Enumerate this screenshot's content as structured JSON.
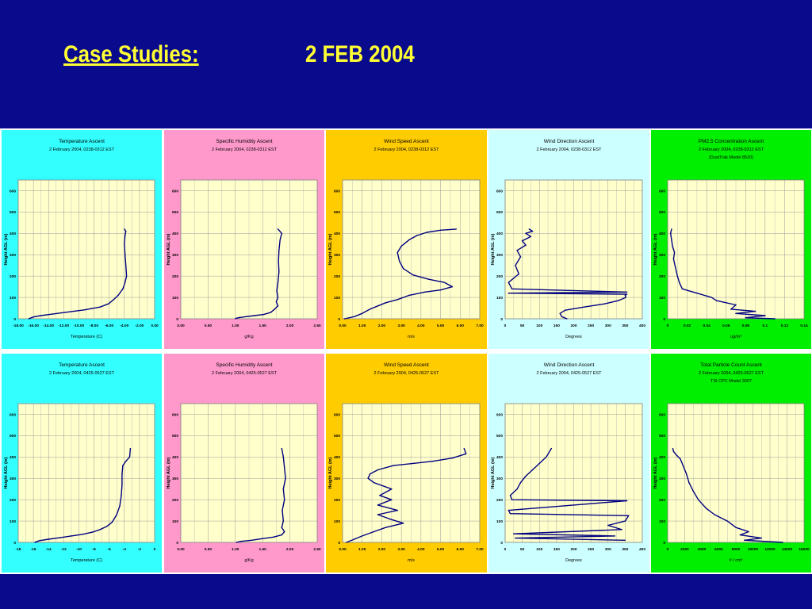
{
  "slide": {
    "title_left": "Case Studies:",
    "title_right": "2 FEB 2004",
    "background": "#0a0a8c",
    "title_color": "#ffff33"
  },
  "chart_data": [
    {
      "type": "line",
      "title": "Temperature Ascent",
      "subtitle": "2 February 2004, 0238-0312 EST",
      "xlabel": "Temperature (C)",
      "ylabel": "Height AGL (m)",
      "xlim": [
        -18,
        0
      ],
      "ylim": [
        0,
        650
      ],
      "xticks": [
        "-18.00",
        "-16.00",
        "-14.00",
        "-12.00",
        "-10.00",
        "-8.00",
        "-6.00",
        "-4.00",
        "-2.00",
        "0.00"
      ],
      "yticks": [
        "0",
        "100",
        "200",
        "300",
        "400",
        "500",
        "600"
      ],
      "grid": true,
      "panel_color": "#33ffff",
      "series": [
        {
          "x": [
            -16.6,
            -16.4,
            -16.2,
            -15.8,
            -15.0,
            -13.5,
            -11.8,
            -10.5,
            -9.2,
            -8.3,
            -7.2,
            -6.1,
            -5.4,
            -4.8,
            -4.2,
            -3.9,
            -3.7,
            -3.8,
            -3.9,
            -4.0,
            -3.9,
            -3.8,
            -4.0
          ],
          "y": [
            0,
            3,
            6,
            10,
            15,
            22,
            30,
            36,
            42,
            48,
            55,
            70,
            90,
            110,
            140,
            170,
            200,
            250,
            300,
            350,
            390,
            410,
            420
          ]
        }
      ]
    },
    {
      "type": "line",
      "title": "Specific Humidity Ascent",
      "subtitle": "2 February 2004, 0238-0312 EST",
      "xlabel": "g/Kg",
      "ylabel": "Height AGL (m)",
      "xlim": [
        0,
        2.5
      ],
      "ylim": [
        0,
        650
      ],
      "xticks": [
        "0.00",
        "0.50",
        "1.00",
        "1.50",
        "2.00",
        "2.50"
      ],
      "yticks": [
        "0",
        "100",
        "200",
        "300",
        "400",
        "500",
        "600"
      ],
      "grid": true,
      "panel_color": "#ff99cc",
      "series": [
        {
          "x": [
            1.0,
            1.02,
            1.08,
            1.2,
            1.35,
            1.52,
            1.65,
            1.72,
            1.78,
            1.75,
            1.78,
            1.76,
            1.78,
            1.8,
            1.79,
            1.8,
            1.82,
            1.85,
            1.78
          ],
          "y": [
            0,
            3,
            6,
            10,
            15,
            20,
            30,
            45,
            60,
            80,
            100,
            130,
            170,
            220,
            270,
            320,
            370,
            400,
            420
          ]
        }
      ]
    },
    {
      "type": "line",
      "title": "Wind Speed Ascent",
      "subtitle": "2 February 2004, 0238-0312 EST",
      "xlabel": "m/s",
      "ylabel": "Height AGL (m)",
      "xlim": [
        0,
        7
      ],
      "ylim": [
        0,
        650
      ],
      "xticks": [
        "0.00",
        "1.00",
        "2.00",
        "3.00",
        "4.00",
        "5.00",
        "6.00",
        "7.00"
      ],
      "yticks": [
        "0",
        "100",
        "200",
        "300",
        "400",
        "500",
        "600"
      ],
      "grid": true,
      "panel_color": "#ffcc00",
      "series": [
        {
          "x": [
            0.1,
            0.6,
            1.0,
            1.4,
            1.8,
            2.2,
            2.8,
            3.4,
            4.2,
            5.0,
            5.6,
            5.2,
            4.4,
            3.6,
            3.1,
            2.9,
            2.8,
            3.0,
            3.4,
            3.8,
            4.3,
            5.0,
            5.8
          ],
          "y": [
            0,
            10,
            25,
            45,
            60,
            75,
            90,
            110,
            125,
            135,
            150,
            170,
            185,
            205,
            235,
            270,
            310,
            340,
            370,
            390,
            405,
            415,
            420
          ]
        }
      ]
    },
    {
      "type": "line",
      "title": "Wind Direction Ascent",
      "subtitle": "2 February 2004, 0238-0312 EST",
      "xlabel": "Degrees",
      "ylabel": "Height AGL (m)",
      "xlim": [
        0,
        400
      ],
      "ylim": [
        0,
        650
      ],
      "xticks": [
        "0",
        "50",
        "100",
        "150",
        "200",
        "250",
        "300",
        "350",
        "400"
      ],
      "yticks": [
        "0",
        "100",
        "200",
        "300",
        "400",
        "500",
        "600"
      ],
      "grid": true,
      "panel_color": "#ccffff",
      "series": [
        {
          "x": [
            180,
            165,
            160,
            175,
            230,
            290,
            330,
            352,
            350,
            355,
            10,
            355,
            20,
            10,
            40,
            30,
            45,
            35,
            60,
            50,
            75,
            60,
            80,
            70
          ],
          "y": [
            0,
            10,
            25,
            40,
            55,
            70,
            85,
            100,
            110,
            115,
            120,
            125,
            140,
            170,
            210,
            250,
            290,
            320,
            345,
            365,
            385,
            400,
            410,
            420
          ]
        }
      ]
    },
    {
      "type": "line",
      "title": "PM2.5 Concentration Ascent",
      "subtitle": "2 February 2004, 0238-0312 EST",
      "subtitle2": "(DustTrak Model 8520)",
      "xlabel": "ug/m³",
      "ylabel": "Height AGL (m)",
      "xlim": [
        0,
        0.14
      ],
      "ylim": [
        0,
        650
      ],
      "xticks": [
        "0",
        "0.02",
        "0.04",
        "0.06",
        "0.08",
        "0.1",
        "0.12",
        "0.14"
      ],
      "yticks": [
        "0",
        "100",
        "200",
        "300",
        "400",
        "500",
        "600"
      ],
      "grid": true,
      "panel_color": "#00ee00",
      "series": [
        {
          "x": [
            0.11,
            0.08,
            0.1,
            0.07,
            0.09,
            0.065,
            0.07,
            0.05,
            0.045,
            0.03,
            0.015,
            0.012,
            0.01,
            0.008,
            0.006,
            0.007,
            0.005,
            0.004,
            0.003,
            0.004
          ],
          "y": [
            0,
            5,
            15,
            25,
            35,
            45,
            65,
            85,
            100,
            120,
            140,
            170,
            200,
            240,
            280,
            310,
            340,
            370,
            400,
            420
          ]
        }
      ]
    },
    {
      "type": "line",
      "title": "Temperature Ascent",
      "subtitle": "2 February 2004, 0425-0527 EST",
      "xlabel": "Temperature (C)",
      "ylabel": "Height AGL (m)",
      "xlim": [
        -18,
        0
      ],
      "ylim": [
        0,
        650
      ],
      "xticks": [
        "-18",
        "-16",
        "-14",
        "-12",
        "-10",
        "-8",
        "-6",
        "-4",
        "-2",
        "0"
      ],
      "yticks": [
        "0",
        "100",
        "200",
        "300",
        "400",
        "500",
        "600"
      ],
      "grid": true,
      "panel_color": "#33ffff",
      "series": [
        {
          "x": [
            -15.8,
            -15.6,
            -15.2,
            -14.0,
            -12.5,
            -11.0,
            -9.5,
            -8.2,
            -7.2,
            -6.3,
            -5.6,
            -5.0,
            -4.6,
            -4.4,
            -4.3,
            -4.3,
            -4.2,
            -3.8,
            -3.3,
            -3.2
          ],
          "y": [
            0,
            3,
            8,
            15,
            22,
            30,
            38,
            48,
            60,
            75,
            95,
            130,
            170,
            220,
            270,
            320,
            360,
            380,
            400,
            440
          ]
        }
      ]
    },
    {
      "type": "line",
      "title": "Specific Humidity Ascent",
      "subtitle": "2 February 2004, 0425-0527 EST",
      "xlabel": "g/Kg",
      "ylabel": "Height AGL (m)",
      "xlim": [
        0,
        2.5
      ],
      "ylim": [
        0,
        650
      ],
      "xticks": [
        "0.00",
        "0.50",
        "1.00",
        "1.50",
        "2.00",
        "2.50"
      ],
      "yticks": [
        "0",
        "100",
        "200",
        "300",
        "400",
        "500",
        "600"
      ],
      "grid": true,
      "panel_color": "#ff99cc",
      "series": [
        {
          "x": [
            1.02,
            1.1,
            1.3,
            1.5,
            1.7,
            1.85,
            1.9,
            1.85,
            1.88,
            1.86,
            1.9,
            1.88,
            1.92,
            1.9,
            1.88,
            1.85
          ],
          "y": [
            0,
            5,
            10,
            18,
            25,
            35,
            50,
            70,
            100,
            150,
            200,
            250,
            300,
            350,
            400,
            440
          ]
        }
      ]
    },
    {
      "type": "line",
      "title": "Wind Speed Ascent",
      "subtitle": "2 February 2004, 0425-0527 EST",
      "xlabel": "m/s",
      "ylabel": "Height AGL (m)",
      "xlim": [
        0,
        7
      ],
      "ylim": [
        0,
        650
      ],
      "xticks": [
        "0.00",
        "1.00",
        "2.00",
        "3.00",
        "4.00",
        "5.00",
        "6.00",
        "7.00"
      ],
      "yticks": [
        "0",
        "100",
        "200",
        "300",
        "400",
        "500",
        "600"
      ],
      "grid": true,
      "panel_color": "#ffcc00",
      "series": [
        {
          "x": [
            0.2,
            0.6,
            1.0,
            1.6,
            2.2,
            3.1,
            2.4,
            1.8,
            2.8,
            1.8,
            2.5,
            1.9,
            2.5,
            1.6,
            1.3,
            1.4,
            1.8,
            2.6,
            3.6,
            4.6,
            5.6,
            6.3,
            6.2
          ],
          "y": [
            0,
            15,
            30,
            50,
            70,
            90,
            110,
            130,
            150,
            175,
            200,
            220,
            250,
            280,
            300,
            320,
            340,
            360,
            370,
            380,
            395,
            415,
            440
          ]
        }
      ]
    },
    {
      "type": "line",
      "title": "Wind Direction Ascent",
      "subtitle": "2 February 2004, 0425-0527 EST",
      "xlabel": "Degrees",
      "ylabel": "Height AGL (m)",
      "xlim": [
        0,
        400
      ],
      "ylim": [
        0,
        650
      ],
      "xticks": [
        "0",
        "50",
        "100",
        "150",
        "200",
        "250",
        "300",
        "350",
        "400"
      ],
      "yticks": [
        "0",
        "100",
        "200",
        "300",
        "400",
        "500",
        "600"
      ],
      "grid": true,
      "panel_color": "#ccffff",
      "series": [
        {
          "x": [
            350,
            30,
            320,
            25,
            340,
            300,
            350,
            360,
            15,
            10,
            355,
            20,
            15,
            35,
            45,
            60,
            80,
            100,
            120,
            135
          ],
          "y": [
            10,
            20,
            30,
            40,
            60,
            80,
            100,
            125,
            135,
            150,
            195,
            200,
            220,
            250,
            280,
            310,
            340,
            370,
            400,
            440
          ]
        }
      ]
    },
    {
      "type": "line",
      "title": "Total Particle Count Ascent",
      "subtitle": "2 February 2004, 0425-0527 EST",
      "subtitle2": "TSI CPC Model 3007",
      "xlabel": "# / cm³",
      "ylabel": "Height AGL (m)",
      "xlim": [
        0,
        16000
      ],
      "ylim": [
        0,
        650
      ],
      "xticks": [
        "0",
        "2000",
        "4000",
        "6000",
        "8000",
        "10000",
        "12000",
        "14000",
        "16000"
      ],
      "yticks": [
        "0",
        "100",
        "200",
        "300",
        "400",
        "500",
        "600"
      ],
      "grid": true,
      "panel_color": "#00ee00",
      "series": [
        {
          "x": [
            13500,
            9000,
            11000,
            8500,
            9500,
            8000,
            7000,
            5500,
            4500,
            3600,
            3000,
            2500,
            2200,
            1800,
            1500,
            1000,
            700,
            600
          ],
          "y": [
            0,
            10,
            20,
            35,
            50,
            70,
            100,
            130,
            160,
            200,
            240,
            280,
            320,
            360,
            390,
            410,
            425,
            440
          ]
        }
      ]
    }
  ]
}
